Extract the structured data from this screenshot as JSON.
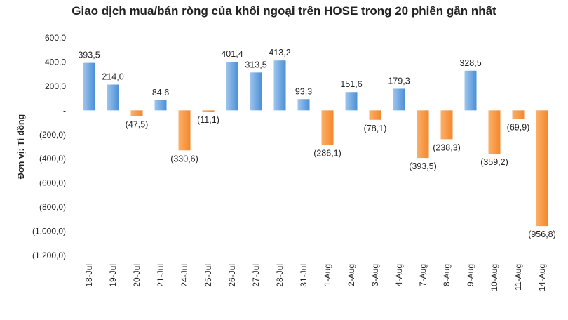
{
  "chart_data": {
    "type": "bar",
    "title": "Giao dịch mua/bán ròng của khối ngoại trên HOSE trong 20 phiên gần nhất",
    "xlabel": "",
    "ylabel": "Đơn vị: Tỉ đồng",
    "ylim": [
      -1200,
      600
    ],
    "y_ticks": [
      600,
      400,
      200,
      0,
      -200,
      -400,
      -600,
      -800,
      -1000,
      -1200
    ],
    "y_tick_labels": [
      "600,0",
      "400,0",
      "200,0",
      "-",
      "(200,0)",
      "(400,0)",
      "(600,0)",
      "(800,0)",
      "(1.000,0)",
      "(1.200,0)"
    ],
    "categories": [
      "18-Jul",
      "19-Jul",
      "20-Jul",
      "21-Jul",
      "24-Jul",
      "25-Jul",
      "26-Jul",
      "27-Jul",
      "28-Jul",
      "31-Jul",
      "1-Aug",
      "2-Aug",
      "3-Aug",
      "4-Aug",
      "7-Aug",
      "8-Aug",
      "9-Aug",
      "10-Aug",
      "11-Aug",
      "14-Aug"
    ],
    "values": [
      393.5,
      214.0,
      -47.5,
      84.6,
      -330.6,
      -11.1,
      401.4,
      313.5,
      413.2,
      93.3,
      -286.1,
      151.6,
      -78.1,
      179.3,
      -393.5,
      -238.3,
      328.5,
      -359.2,
      -69.9,
      -956.8
    ],
    "data_labels": [
      "393,5",
      "214,0",
      "(47,5)",
      "84,6",
      "(330,6)",
      "(11,1)",
      "401,4",
      "313,5",
      "413,2",
      "93,3",
      "(286,1)",
      "151,6",
      "(78,1)",
      "179,3",
      "(393,5)",
      "(238,3)",
      "328,5",
      "(359,2)",
      "(69,9)",
      "(956,8)"
    ],
    "colors": {
      "positive": "#4a8fd6",
      "positive_light": "#9fc5ee",
      "negative": "#f5862a",
      "negative_light": "#fbb06a"
    },
    "grid": false,
    "legend": "none"
  }
}
